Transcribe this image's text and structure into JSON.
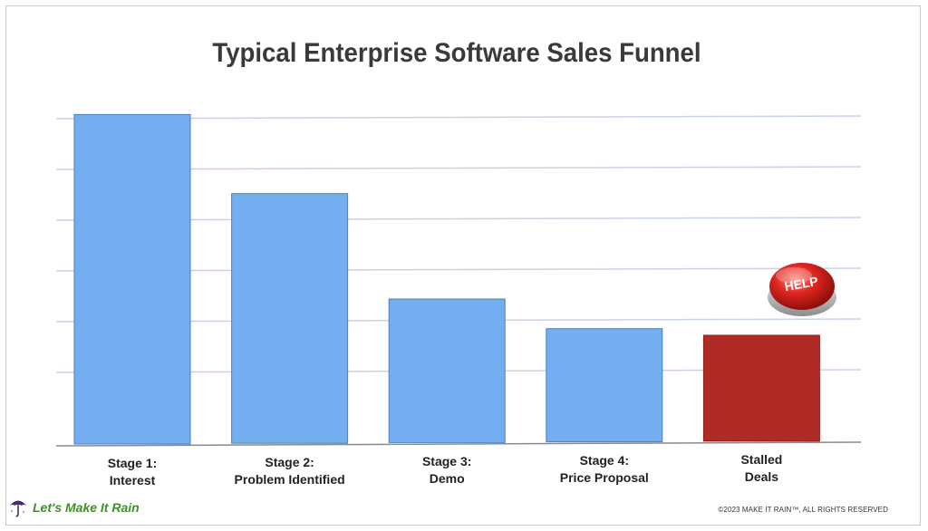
{
  "chart_data": {
    "type": "bar",
    "title": "Typical Enterprise Software Sales Funnel",
    "xlabel": "",
    "ylabel": "",
    "categories": [
      [
        "Stage 1:",
        "Interest"
      ],
      [
        "Stage 2:",
        "Problem Identified"
      ],
      [
        "Stage 3:",
        "Demo"
      ],
      [
        "Stage 4:",
        "Price Proposal"
      ],
      [
        "Stalled",
        "Deals"
      ]
    ],
    "values": [
      100,
      76,
      44,
      35,
      33
    ],
    "ylim": [
      0,
      110
    ],
    "y_ticks_count": 6,
    "grid": true,
    "legend": "none",
    "colors": [
      "#74aef0",
      "#74aef0",
      "#74aef0",
      "#74aef0",
      "#b02a26"
    ],
    "bar_edge_color": "#4a7fc4"
  },
  "help_button": {
    "label": "HELP",
    "icon": "help-button-icon"
  },
  "footer": {
    "brand": "Let's Make It Rain",
    "brand_icon": "umbrella-icon",
    "copyright": "©2023 MAKE IT RAIN™, ALL RIGHTS RESERVED"
  }
}
